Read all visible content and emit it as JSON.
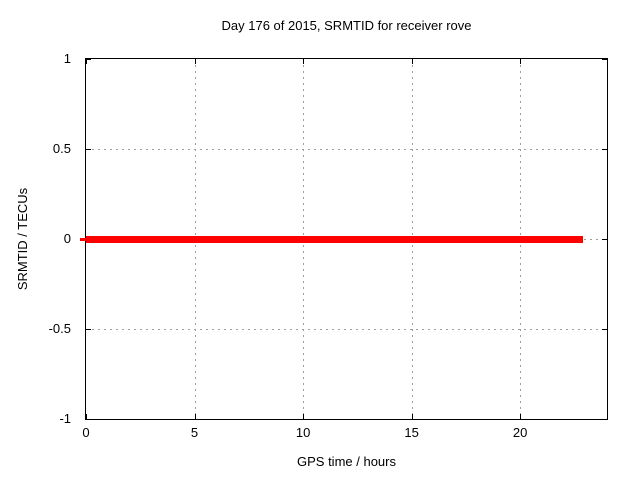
{
  "title": "Day 176 of 2015, SRMTID for receiver rove",
  "axes": {
    "x_label": "GPS time / hours",
    "y_label": "SRMTID / TECUs"
  },
  "colors": {
    "series_red": "#ff0000",
    "grid": "#9e9e9e",
    "border": "#000000",
    "background": "#ffffff"
  },
  "chart_data": {
    "type": "line",
    "title": "Day 176 of 2015, SRMTID for receiver rove",
    "xlabel": "GPS time / hours",
    "ylabel": "SRMTID / TECUs",
    "xlim": [
      0,
      24
    ],
    "ylim": [
      -1,
      1
    ],
    "x_ticks": [
      0,
      5,
      10,
      15,
      20
    ],
    "y_ticks": [
      1,
      0.5,
      0,
      -0.5,
      -1
    ],
    "grid": true,
    "legend": "none",
    "series": [
      {
        "name": "SRMTID",
        "color": "#ff0000",
        "style": "thick-line",
        "x": [
          0,
          22.9
        ],
        "y": [
          0,
          0
        ]
      }
    ]
  }
}
